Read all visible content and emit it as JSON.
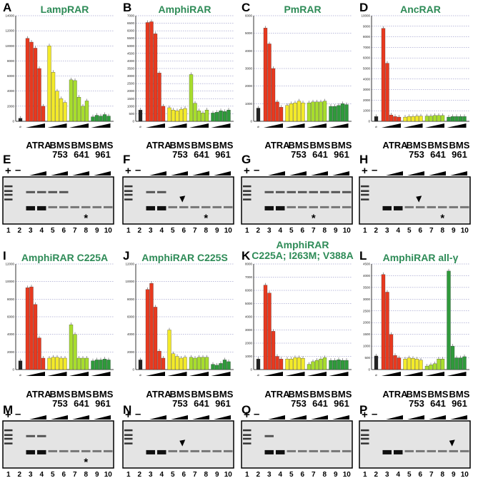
{
  "figure": {
    "groups": [
      "ATRA",
      "BMS\n753",
      "BMS\n641",
      "BMS\n961"
    ],
    "plus": "+",
    "minus": "–",
    "lanes": [
      "1",
      "2",
      "3",
      "4",
      "5",
      "6",
      "7",
      "8",
      "9",
      "10"
    ],
    "zero_symbol": "⌀",
    "asterisk": "*",
    "colors": {
      "control": "#222222",
      "ATRA": "#e8391f",
      "BMS753": "#f3ea2a",
      "BMS641": "#a8dd2e",
      "BMS961": "#2f9a3b"
    }
  },
  "chart_data": [
    {
      "type": "bar",
      "panel": "A",
      "title": "LampRAR",
      "ylim": [
        0,
        14000
      ],
      "yticks": [
        0,
        2000,
        4000,
        6000,
        8000,
        10000,
        12000,
        14000
      ],
      "control": 400,
      "series": [
        {
          "group": "ATRA",
          "values": [
            11000,
            10500,
            9700,
            7000,
            2000
          ]
        },
        {
          "group": "BMS 753",
          "values": [
            10000,
            6500,
            4000,
            3000,
            2500
          ]
        },
        {
          "group": "BMS 641",
          "values": [
            5500,
            5400,
            3200,
            2000,
            2700
          ]
        },
        {
          "group": "BMS 961",
          "values": [
            600,
            800,
            700,
            900,
            700
          ]
        }
      ]
    },
    {
      "type": "bar",
      "panel": "B",
      "title": "AmphiRAR",
      "ylim": [
        0,
        7000
      ],
      "yticks": [
        0,
        500,
        1000,
        1500,
        2000,
        2500,
        3000,
        3500,
        4000,
        4500,
        5000,
        5500,
        6000,
        6500,
        7000
      ],
      "control": 750,
      "series": [
        {
          "group": "ATRA",
          "values": [
            6550,
            6600,
            5800,
            3200,
            1000
          ]
        },
        {
          "group": "BMS 753",
          "values": [
            900,
            750,
            700,
            800,
            850
          ]
        },
        {
          "group": "BMS 641",
          "values": [
            3100,
            1200,
            700,
            550,
            750
          ]
        },
        {
          "group": "BMS 961",
          "values": [
            550,
            600,
            700,
            650,
            750
          ]
        }
      ]
    },
    {
      "type": "bar",
      "panel": "C",
      "title": "PmRAR",
      "ylim": [
        0,
        6000
      ],
      "yticks": [
        0,
        1000,
        2000,
        3000,
        4000,
        5000,
        6000
      ],
      "control": 750,
      "series": [
        {
          "group": "ATRA",
          "values": [
            5300,
            4400,
            3000,
            1100,
            800
          ]
        },
        {
          "group": "BMS 753",
          "values": [
            900,
            1000,
            1050,
            1150,
            1050
          ]
        },
        {
          "group": "BMS 641",
          "values": [
            1050,
            1100,
            1100,
            1100,
            1150
          ]
        },
        {
          "group": "BMS 961",
          "values": [
            850,
            850,
            900,
            1000,
            950
          ]
        }
      ]
    },
    {
      "type": "bar",
      "panel": "D",
      "title": "AncRAR",
      "ylim": [
        0,
        10000
      ],
      "yticks": [
        0,
        1000,
        2000,
        3000,
        4000,
        5000,
        6000,
        7000,
        8000,
        9000,
        10000
      ],
      "control": 450,
      "series": [
        {
          "group": "ATRA",
          "values": [
            8800,
            5500,
            600,
            450,
            400
          ]
        },
        {
          "group": "BMS 753",
          "values": [
            400,
            450,
            450,
            500,
            500
          ]
        },
        {
          "group": "BMS 641",
          "values": [
            500,
            500,
            550,
            550,
            550
          ]
        },
        {
          "group": "BMS 961",
          "values": [
            400,
            450,
            450,
            450,
            450
          ]
        }
      ]
    },
    {
      "type": "bar",
      "panel": "I",
      "title": "AmphiRAR C225A",
      "ylim": [
        0,
        12000
      ],
      "yticks": [
        0,
        2000,
        4000,
        6000,
        8000,
        10000,
        12000
      ],
      "control": 1000,
      "series": [
        {
          "group": "ATRA",
          "values": [
            9300,
            9400,
            7400,
            3600,
            1300
          ]
        },
        {
          "group": "BMS 753",
          "values": [
            1300,
            1400,
            1400,
            1300,
            1300
          ]
        },
        {
          "group": "BMS 641",
          "values": [
            5100,
            4000,
            1300,
            1300,
            1300
          ]
        },
        {
          "group": "BMS 961",
          "values": [
            1000,
            1100,
            1100,
            1200,
            1100
          ]
        }
      ]
    },
    {
      "type": "bar",
      "panel": "J",
      "title": "AmphiRAR C225S",
      "ylim": [
        0,
        12000
      ],
      "yticks": [
        0,
        2000,
        4000,
        6000,
        8000,
        10000,
        12000
      ],
      "control": 1100,
      "series": [
        {
          "group": "ATRA",
          "values": [
            9100,
            9800,
            7100,
            2100,
            1300
          ]
        },
        {
          "group": "BMS 753",
          "values": [
            4500,
            1800,
            1500,
            1300,
            1400
          ]
        },
        {
          "group": "BMS 641",
          "values": [
            1400,
            1300,
            1400,
            1400,
            1400
          ]
        },
        {
          "group": "BMS 961",
          "values": [
            600,
            500,
            700,
            1100,
            900
          ]
        }
      ]
    },
    {
      "type": "bar",
      "panel": "K",
      "title": "AmphiRAR\nC225A; I263M; V388A",
      "ylim": [
        0,
        8000
      ],
      "yticks": [
        0,
        1000,
        2000,
        3000,
        4000,
        5000,
        6000,
        7000,
        8000
      ],
      "control": 800,
      "series": [
        {
          "group": "ATRA",
          "values": [
            6400,
            5800,
            2900,
            1000,
            800
          ]
        },
        {
          "group": "BMS 753",
          "values": [
            800,
            800,
            900,
            900,
            850
          ]
        },
        {
          "group": "BMS 641",
          "values": [
            400,
            600,
            700,
            800,
            900
          ]
        },
        {
          "group": "BMS 961",
          "values": [
            700,
            700,
            750,
            700,
            700
          ]
        }
      ]
    },
    {
      "type": "bar",
      "panel": "L",
      "title": "AmphiRAR all-γ",
      "ylim": [
        0,
        4500
      ],
      "yticks": [
        0,
        500,
        1000,
        1500,
        2000,
        2500,
        3000,
        3500,
        4000,
        4500
      ],
      "control": 580,
      "series": [
        {
          "group": "ATRA",
          "values": [
            4050,
            3300,
            1500,
            600,
            500
          ]
        },
        {
          "group": "BMS 753",
          "values": [
            450,
            500,
            480,
            450,
            400
          ]
        },
        {
          "group": "BMS 641",
          "values": [
            150,
            200,
            250,
            450,
            450
          ]
        },
        {
          "group": "BMS 961",
          "values": [
            4200,
            1000,
            500,
            500,
            550
          ]
        }
      ]
    }
  ],
  "gels": [
    {
      "panel": "E",
      "upper_from_lane": 3,
      "upper_to_lane": 6,
      "marks": [
        {
          "type": "asterisk",
          "lane": 8
        }
      ]
    },
    {
      "panel": "F",
      "upper_from_lane": 3,
      "upper_to_lane": 4,
      "marks": [
        {
          "type": "arrow",
          "lane": 6
        },
        {
          "type": "asterisk",
          "lane": 8
        }
      ]
    },
    {
      "panel": "G",
      "upper_from_lane": 3,
      "upper_to_lane": 10,
      "marks": [
        {
          "type": "asterisk",
          "lane": 7
        }
      ]
    },
    {
      "panel": "H",
      "upper_from_lane": 0,
      "upper_to_lane": 0,
      "marks": [
        {
          "type": "arrow",
          "lane": 6
        },
        {
          "type": "asterisk",
          "lane": 8
        }
      ]
    },
    {
      "panel": "M",
      "upper_from_lane": 3,
      "upper_to_lane": 4,
      "marks": [
        {
          "type": "asterisk",
          "lane": 8
        }
      ]
    },
    {
      "panel": "N",
      "upper_from_lane": 0,
      "upper_to_lane": 0,
      "marks": [
        {
          "type": "arrow",
          "lane": 6
        }
      ]
    },
    {
      "panel": "O",
      "upper_from_lane": 3,
      "upper_to_lane": 3,
      "marks": []
    },
    {
      "panel": "P",
      "upper_from_lane": 0,
      "upper_to_lane": 0,
      "marks": [
        {
          "type": "arrow",
          "lane": 9
        }
      ]
    }
  ]
}
